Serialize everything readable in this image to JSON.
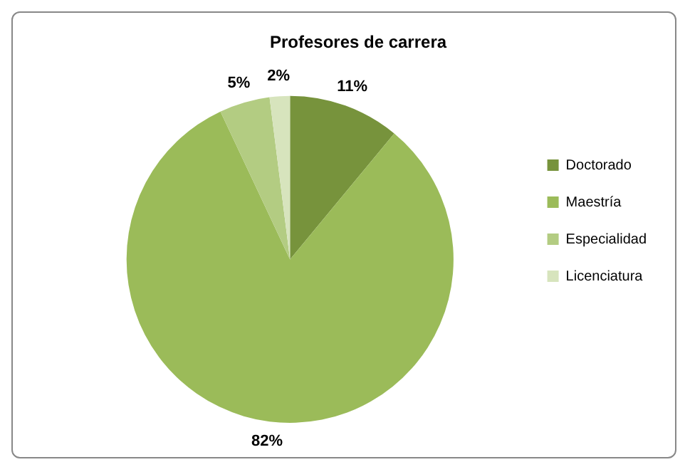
{
  "chart_data": {
    "type": "pie",
    "title": "Profesores de carrera",
    "categories": [
      "Doctorado",
      "Maestría",
      "Especialidad",
      "Licenciatura"
    ],
    "values": [
      11,
      82,
      5,
      2
    ],
    "colors": [
      "#77933c",
      "#9bbb59",
      "#b3cc82",
      "#d7e4bd"
    ],
    "value_labels": [
      "11%",
      "82%",
      "5%",
      "2%"
    ],
    "legend": "right"
  }
}
